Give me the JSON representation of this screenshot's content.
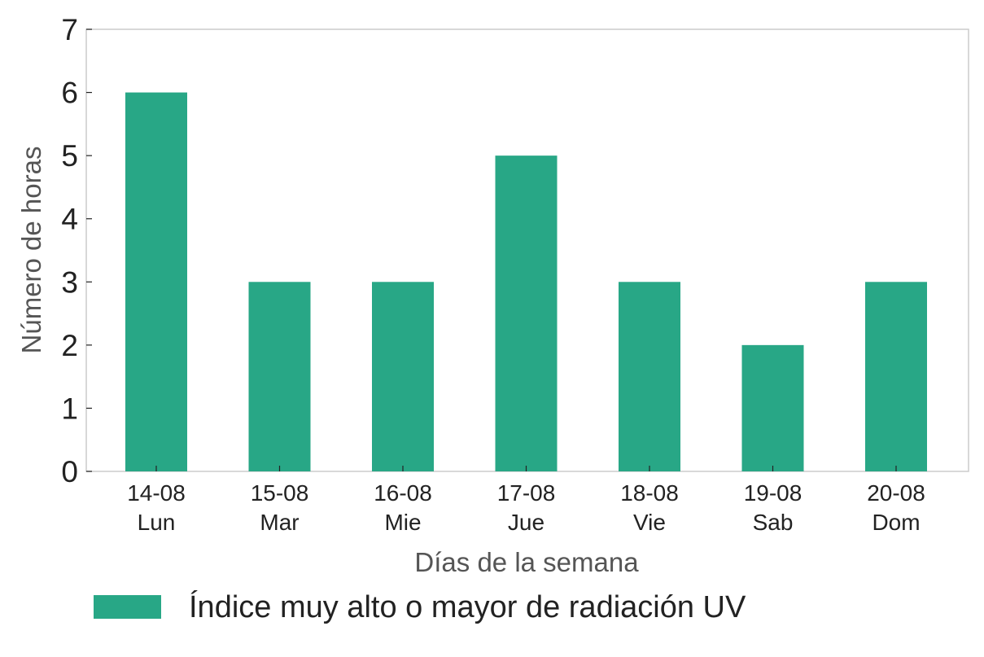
{
  "chart_data": {
    "type": "bar",
    "categories": [
      {
        "date": "14-08",
        "day": "Lun"
      },
      {
        "date": "15-08",
        "day": "Mar"
      },
      {
        "date": "16-08",
        "day": "Mie"
      },
      {
        "date": "17-08",
        "day": "Jue"
      },
      {
        "date": "18-08",
        "day": "Vie"
      },
      {
        "date": "19-08",
        "day": "Sab"
      },
      {
        "date": "20-08",
        "day": "Dom"
      }
    ],
    "series": [
      {
        "name": "Índice muy alto o mayor de radiación UV",
        "values": [
          6,
          3,
          3,
          5,
          3,
          2,
          3
        ],
        "color": "#28a786"
      }
    ],
    "xlabel": "Días de la semana",
    "ylabel": "Número de horas",
    "ylim": [
      0,
      7
    ],
    "yticks": [
      "0",
      "1",
      "2",
      "3",
      "4",
      "5",
      "6",
      "7"
    ],
    "grid": false,
    "legend_position": "bottom"
  }
}
